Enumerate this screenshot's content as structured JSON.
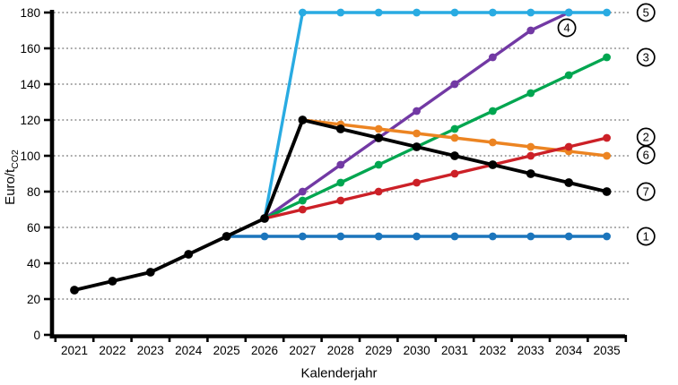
{
  "chart_data": {
    "type": "line",
    "title": "",
    "xlabel": "Kalenderjahr",
    "ylabel_prefix": "Euro/t",
    "ylabel_sub": "CO2",
    "x_ticks": [
      2021,
      2022,
      2023,
      2024,
      2025,
      2026,
      2027,
      2028,
      2029,
      2030,
      2031,
      2032,
      2033,
      2034,
      2035
    ],
    "y_ticks": [
      0,
      20,
      40,
      60,
      80,
      100,
      120,
      140,
      160,
      180
    ],
    "ylim": [
      0,
      180
    ],
    "xlim": [
      2020.4,
      2035.6
    ],
    "grid": "horizontal-dotted",
    "gridline_color": "#999999",
    "axis_color": "#000000",
    "legend_position": "right-margin-circled-numbers",
    "series": [
      {
        "label": "1",
        "name": "series-1-flat-blue",
        "color": "#1B75BC",
        "x": [
          2025,
          2026,
          2027,
          2028,
          2029,
          2030,
          2031,
          2032,
          2033,
          2034,
          2035
        ],
        "y": [
          55,
          55,
          55,
          55,
          55,
          55,
          55,
          55,
          55,
          55,
          55
        ]
      },
      {
        "label": "4",
        "name": "series-4-purple",
        "color": "#7239A4",
        "x": [
          2026,
          2027,
          2028,
          2029,
          2030,
          2031,
          2032,
          2033,
          2034
        ],
        "y": [
          65,
          80,
          95,
          110,
          125,
          140,
          155,
          170,
          180
        ]
      },
      {
        "label": "5",
        "name": "series-5-cyan",
        "color": "#29ABE2",
        "x": [
          2026,
          2027,
          2028,
          2029,
          2030,
          2031,
          2032,
          2033,
          2034,
          2035
        ],
        "y": [
          65,
          180,
          180,
          180,
          180,
          180,
          180,
          180,
          180,
          180
        ]
      },
      {
        "label": "3",
        "name": "series-3-green",
        "color": "#00A650",
        "x": [
          2026,
          2027,
          2028,
          2029,
          2030,
          2031,
          2032,
          2033,
          2034,
          2035
        ],
        "y": [
          65,
          75,
          85,
          95,
          105,
          115,
          125,
          135,
          145,
          155
        ]
      },
      {
        "label": "6",
        "name": "series-6-orange",
        "color": "#EC8422",
        "x": [
          2027,
          2028,
          2029,
          2030,
          2031,
          2032,
          2033,
          2034,
          2035
        ],
        "y": [
          120,
          117.5,
          115,
          112.5,
          110,
          107.5,
          105,
          102.5,
          100
        ]
      },
      {
        "label": "2",
        "name": "series-2-red",
        "color": "#CC2027",
        "x": [
          2026,
          2027,
          2028,
          2029,
          2030,
          2031,
          2032,
          2033,
          2034,
          2035
        ],
        "y": [
          65,
          70,
          75,
          80,
          85,
          90,
          95,
          100,
          105,
          110
        ]
      },
      {
        "label": "7",
        "name": "series-7-black",
        "color": "#000000",
        "x": [
          2021,
          2022,
          2023,
          2024,
          2025,
          2026,
          2027,
          2028,
          2029,
          2030,
          2031,
          2032,
          2033,
          2034,
          2035
        ],
        "y": [
          25,
          30,
          35,
          45,
          55,
          65,
          120,
          115,
          110,
          105,
          100,
          95,
          90,
          85,
          80
        ]
      }
    ],
    "annotations": [
      {
        "text": "5",
        "anchor_year": 2036.03,
        "anchor_value": 180
      },
      {
        "text": "4",
        "anchor_year": 2033.95,
        "anchor_value": 171.5
      },
      {
        "text": "3",
        "anchor_year": 2036.03,
        "anchor_value": 155
      },
      {
        "text": "2",
        "anchor_year": 2036.03,
        "anchor_value": 110.5
      },
      {
        "text": "6",
        "anchor_year": 2036.03,
        "anchor_value": 100.5
      },
      {
        "text": "7",
        "anchor_year": 2036.03,
        "anchor_value": 80
      },
      {
        "text": "1",
        "anchor_year": 2036.03,
        "anchor_value": 55
      }
    ]
  }
}
